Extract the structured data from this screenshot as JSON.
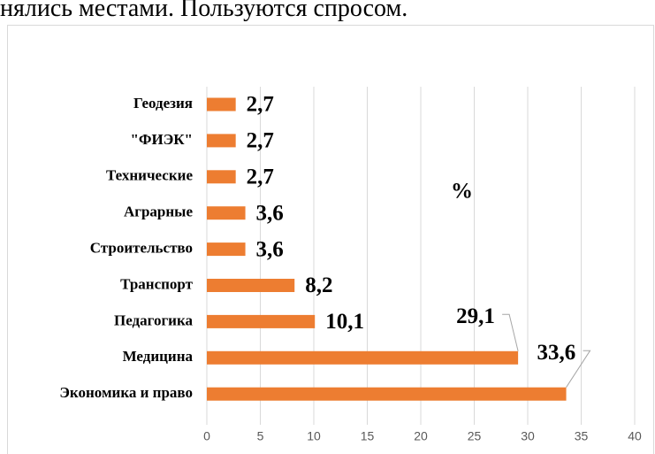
{
  "page_text": "нялись местами. Пользуются спросом.",
  "chart_data": {
    "type": "barh",
    "annotation": "%",
    "categories": [
      "Геодезия",
      "\"ФИЭК\"",
      "Технические",
      "Аграрные",
      "Строительство",
      "Транспорт",
      "Педагогика",
      "Медицина",
      "Экономика и право"
    ],
    "values": [
      2.7,
      2.7,
      2.7,
      3.6,
      3.6,
      8.2,
      10.1,
      29.1,
      33.6
    ],
    "value_labels": [
      "2,7",
      "2,7",
      "2,7",
      "3,6",
      "3,6",
      "8,2",
      "10,1",
      "29,1",
      "33,6"
    ],
    "color": "#ed7d31",
    "xlim": [
      0,
      40
    ],
    "xticks": [
      0,
      5,
      10,
      15,
      20,
      25,
      30,
      35,
      40
    ],
    "grid": true
  }
}
